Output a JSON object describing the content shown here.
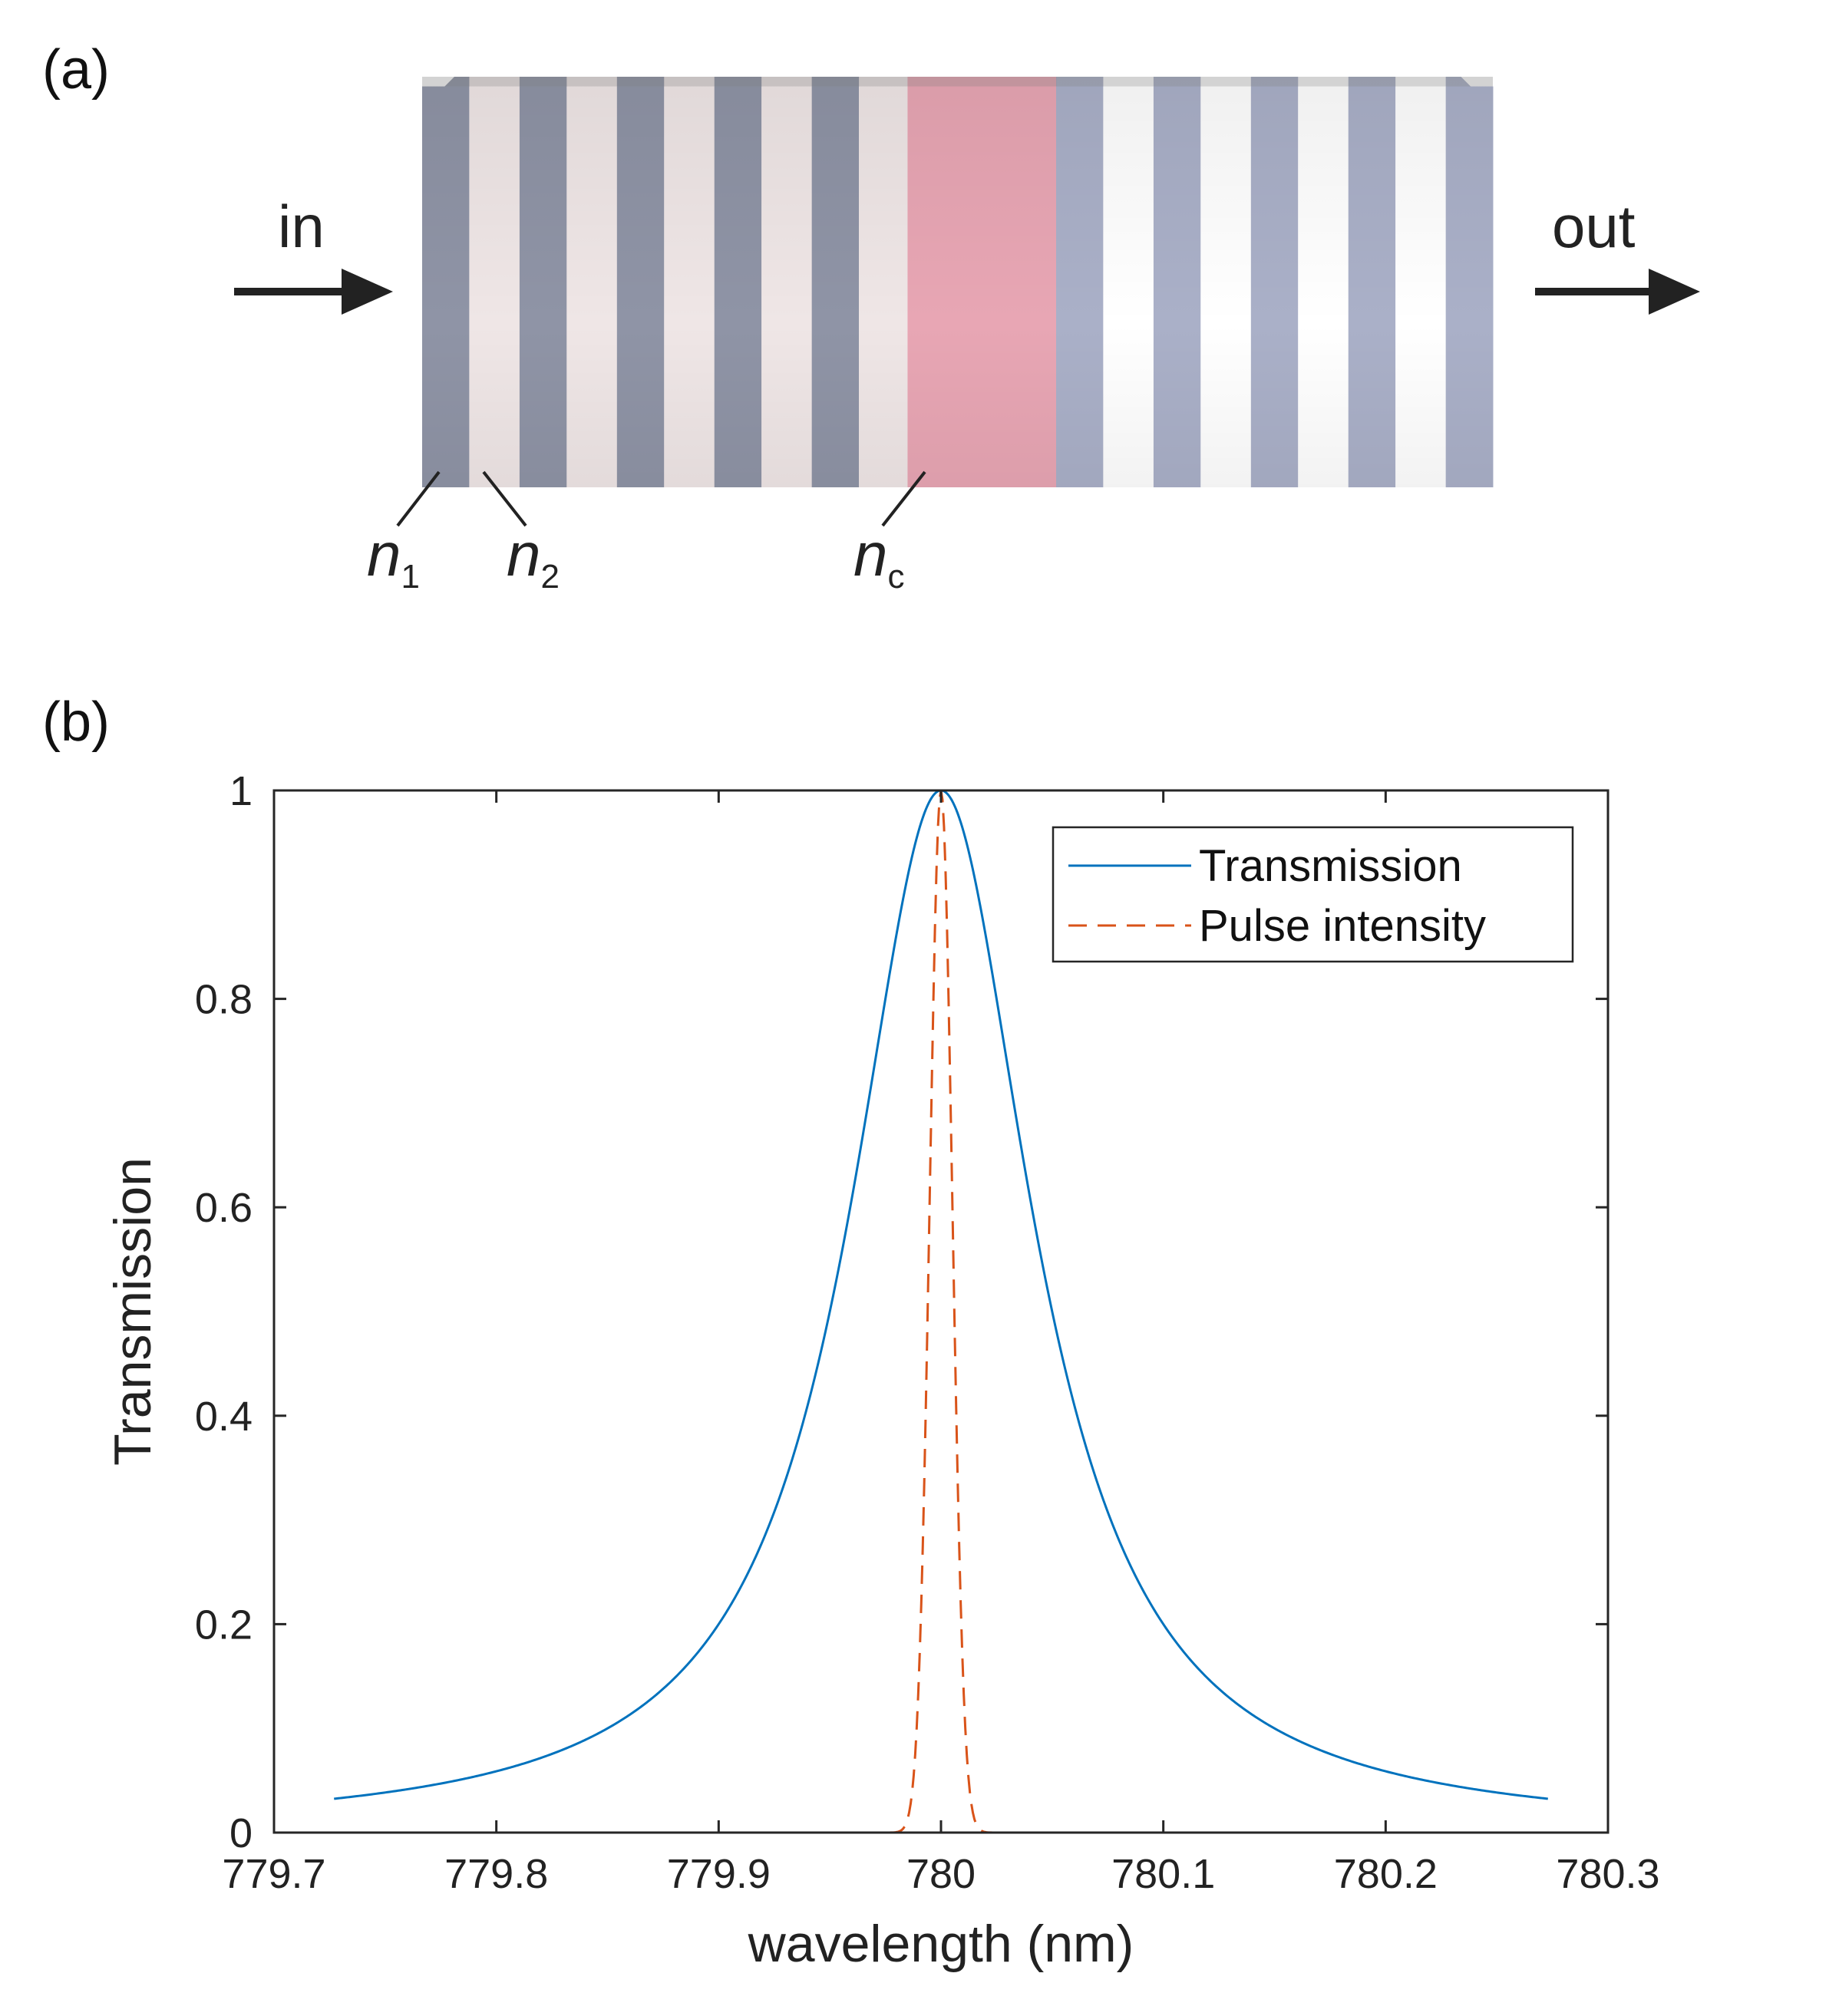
{
  "panel_a": {
    "label": "(a)",
    "in_label": "in",
    "out_label": "out",
    "n1": {
      "symbol": "n",
      "sub": "1"
    },
    "n2": {
      "symbol": "n",
      "sub": "2"
    },
    "nc": {
      "symbol": "n",
      "sub": "c"
    },
    "colors": {
      "layer_n1": "#8f94a6",
      "layer_n2": "#efe6e6",
      "cavity": "#e8a6b4",
      "layer_n1_right": "#aab0c8",
      "layer_n2_right": "#ffffff"
    }
  },
  "panel_b": {
    "label": "(b)"
  },
  "chart_data": {
    "type": "line",
    "title": "",
    "xlabel": "wavelength (nm)",
    "ylabel": "Transmission",
    "xlim": [
      779.7,
      780.3
    ],
    "ylim": [
      0,
      1
    ],
    "xticks": [
      779.7,
      779.8,
      779.9,
      780,
      780.1,
      780.2,
      780.3
    ],
    "xtick_labels": [
      "779.7",
      "779.8",
      "779.9",
      "780",
      "780.1",
      "780.2",
      "780.3"
    ],
    "yticks": [
      0,
      0.2,
      0.4,
      0.6,
      0.8,
      1
    ],
    "ytick_labels": [
      "0",
      "0.2",
      "0.4",
      "0.6",
      "0.8",
      "1"
    ],
    "grid": false,
    "legend_position": "top-right",
    "series": [
      {
        "name": "Transmission",
        "style": "solid",
        "color": "#0072bd",
        "model": "lorentzian",
        "center": 780.0,
        "fwhm": 0.1,
        "x_range": [
          779.727,
          780.273
        ]
      },
      {
        "name": "Pulse intensity",
        "style": "dashed",
        "color": "#d95319",
        "model": "gaussian",
        "center": 780.0,
        "fwhm": 0.012,
        "x_range": [
          779.727,
          780.273
        ]
      }
    ]
  }
}
